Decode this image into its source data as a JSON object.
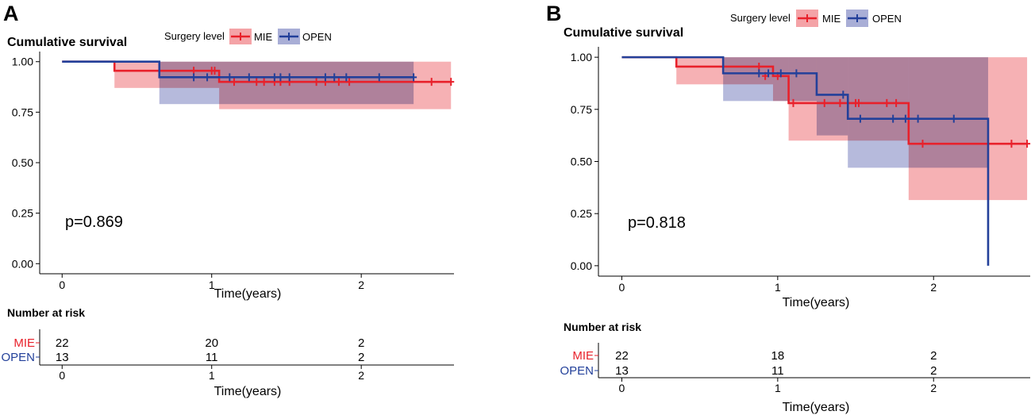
{
  "colors": {
    "mie": "#e8212b",
    "open": "#23409a",
    "mie_band": "#f4a3a7",
    "open_band": "#a9aed6",
    "overlap_band": "#a279b0"
  },
  "chart_data": [
    {
      "type": "line",
      "subtype": "kaplan-meier",
      "panel_label": "A",
      "title": "Cumulative survival",
      "legend_title": "Surgery level",
      "legend_position": "top",
      "xlabel": "Time(years)",
      "ylabel": "",
      "xlim": [
        -0.15,
        2.62
      ],
      "ylim": [
        -0.05,
        1.05
      ],
      "x_ticks": [
        0,
        1,
        2
      ],
      "x_tick_labels": [
        "0",
        "1",
        "2"
      ],
      "y_ticks": [
        0,
        0.25,
        0.5,
        0.75,
        1
      ],
      "y_tick_labels": [
        "0.00",
        "0.25",
        "0.50",
        "0.75",
        "1.00"
      ],
      "pvalue_text": "p=0.869",
      "pvalue_at": [
        0.05,
        0.2
      ],
      "series": [
        {
          "name": "MIE",
          "steps": [
            [
              0,
              1.0
            ],
            [
              0.35,
              0.955
            ],
            [
              1.05,
              0.9
            ],
            [
              2.6,
              0.9
            ]
          ],
          "censors": [
            [
              0.88,
              0.955
            ],
            [
              1.0,
              0.955
            ],
            [
              1.02,
              0.955
            ],
            [
              1.15,
              0.9
            ],
            [
              1.3,
              0.9
            ],
            [
              1.35,
              0.9
            ],
            [
              1.42,
              0.9
            ],
            [
              1.46,
              0.9
            ],
            [
              1.52,
              0.9
            ],
            [
              1.7,
              0.9
            ],
            [
              1.76,
              0.9
            ],
            [
              1.85,
              0.9
            ],
            [
              1.92,
              0.9
            ],
            [
              2.47,
              0.9
            ],
            [
              2.6,
              0.9
            ]
          ],
          "ci_steps": [
            [
              0.35,
              0.87,
              1.0
            ],
            [
              0.65,
              0.87,
              1.0
            ],
            [
              1.05,
              0.765,
              1.0
            ],
            [
              2.6,
              0.765,
              1.0
            ]
          ]
        },
        {
          "name": "OPEN",
          "steps": [
            [
              0,
              1.0
            ],
            [
              0.65,
              0.923
            ],
            [
              2.35,
              0.923
            ]
          ],
          "censors": [
            [
              0.88,
              0.923
            ],
            [
              0.97,
              0.923
            ],
            [
              1.12,
              0.923
            ],
            [
              1.25,
              0.923
            ],
            [
              1.42,
              0.923
            ],
            [
              1.46,
              0.923
            ],
            [
              1.52,
              0.923
            ],
            [
              1.76,
              0.923
            ],
            [
              1.82,
              0.923
            ],
            [
              1.9,
              0.923
            ],
            [
              2.12,
              0.923
            ],
            [
              2.35,
              0.923
            ]
          ],
          "ci_steps": [
            [
              0.65,
              0.79,
              1.0
            ],
            [
              2.35,
              0.79,
              1.0
            ]
          ]
        }
      ],
      "risk_table": {
        "title": "Number at risk",
        "xlabel": "Time(years)",
        "times": [
          "0",
          "1",
          "2"
        ],
        "rows": [
          {
            "name": "MIE",
            "counts": [
              "22",
              "20",
              "2"
            ]
          },
          {
            "name": "OPEN",
            "counts": [
              "13",
              "11",
              "2"
            ]
          }
        ]
      }
    },
    {
      "type": "line",
      "subtype": "kaplan-meier",
      "panel_label": "B",
      "title": "Cumulative survival",
      "legend_title": "Surgery level",
      "legend_position": "top",
      "xlabel": "Time(years)",
      "ylabel": "",
      "xlim": [
        -0.15,
        2.62
      ],
      "ylim": [
        -0.05,
        1.05
      ],
      "x_ticks": [
        0,
        1,
        2
      ],
      "x_tick_labels": [
        "0",
        "1",
        "2"
      ],
      "y_ticks": [
        0,
        0.25,
        0.5,
        0.75,
        1
      ],
      "y_tick_labels": [
        "0.00",
        "0.25",
        "0.50",
        "0.75",
        "1.00"
      ],
      "pvalue_text": "p=0.818",
      "pvalue_at": [
        0.05,
        0.2
      ],
      "series": [
        {
          "name": "MIE",
          "steps": [
            [
              0,
              1.0
            ],
            [
              0.35,
              0.955
            ],
            [
              0.97,
              0.91
            ],
            [
              1.07,
              0.78
            ],
            [
              1.84,
              0.585
            ],
            [
              2.6,
              0.585
            ]
          ],
          "censors": [
            [
              0.88,
              0.955
            ],
            [
              0.92,
              0.91
            ],
            [
              1.0,
              0.91
            ],
            [
              1.1,
              0.78
            ],
            [
              1.3,
              0.78
            ],
            [
              1.4,
              0.78
            ],
            [
              1.5,
              0.78
            ],
            [
              1.52,
              0.78
            ],
            [
              1.7,
              0.78
            ],
            [
              1.76,
              0.78
            ],
            [
              1.93,
              0.585
            ],
            [
              2.5,
              0.585
            ],
            [
              2.6,
              0.585
            ]
          ],
          "ci_steps": [
            [
              0.35,
              0.87,
              1.0
            ],
            [
              0.97,
              0.79,
              1.0
            ],
            [
              1.07,
              0.6,
              1.0
            ],
            [
              1.84,
              0.315,
              1.0
            ],
            [
              2.6,
              0.315,
              1.0
            ]
          ]
        },
        {
          "name": "OPEN",
          "steps": [
            [
              0,
              1.0
            ],
            [
              0.65,
              0.923
            ],
            [
              1.25,
              0.82
            ],
            [
              1.45,
              0.705
            ],
            [
              2.35,
              0.0
            ]
          ],
          "censors": [
            [
              0.88,
              0.923
            ],
            [
              0.94,
              0.923
            ],
            [
              1.02,
              0.923
            ],
            [
              1.12,
              0.923
            ],
            [
              1.42,
              0.82
            ],
            [
              1.53,
              0.705
            ],
            [
              1.74,
              0.705
            ],
            [
              1.82,
              0.705
            ],
            [
              1.9,
              0.705
            ],
            [
              2.13,
              0.705
            ]
          ],
          "ci_steps": [
            [
              0.65,
              0.79,
              1.0
            ],
            [
              1.25,
              0.625,
              1.0
            ],
            [
              1.45,
              0.47,
              1.0
            ],
            [
              2.35,
              0.47,
              1.0
            ]
          ]
        }
      ],
      "risk_table": {
        "title": "Number at risk",
        "xlabel": "Time(years)",
        "times": [
          "0",
          "1",
          "2"
        ],
        "rows": [
          {
            "name": "MIE",
            "counts": [
              "22",
              "18",
              "2"
            ]
          },
          {
            "name": "OPEN",
            "counts": [
              "13",
              "11",
              "2"
            ]
          }
        ]
      }
    }
  ]
}
